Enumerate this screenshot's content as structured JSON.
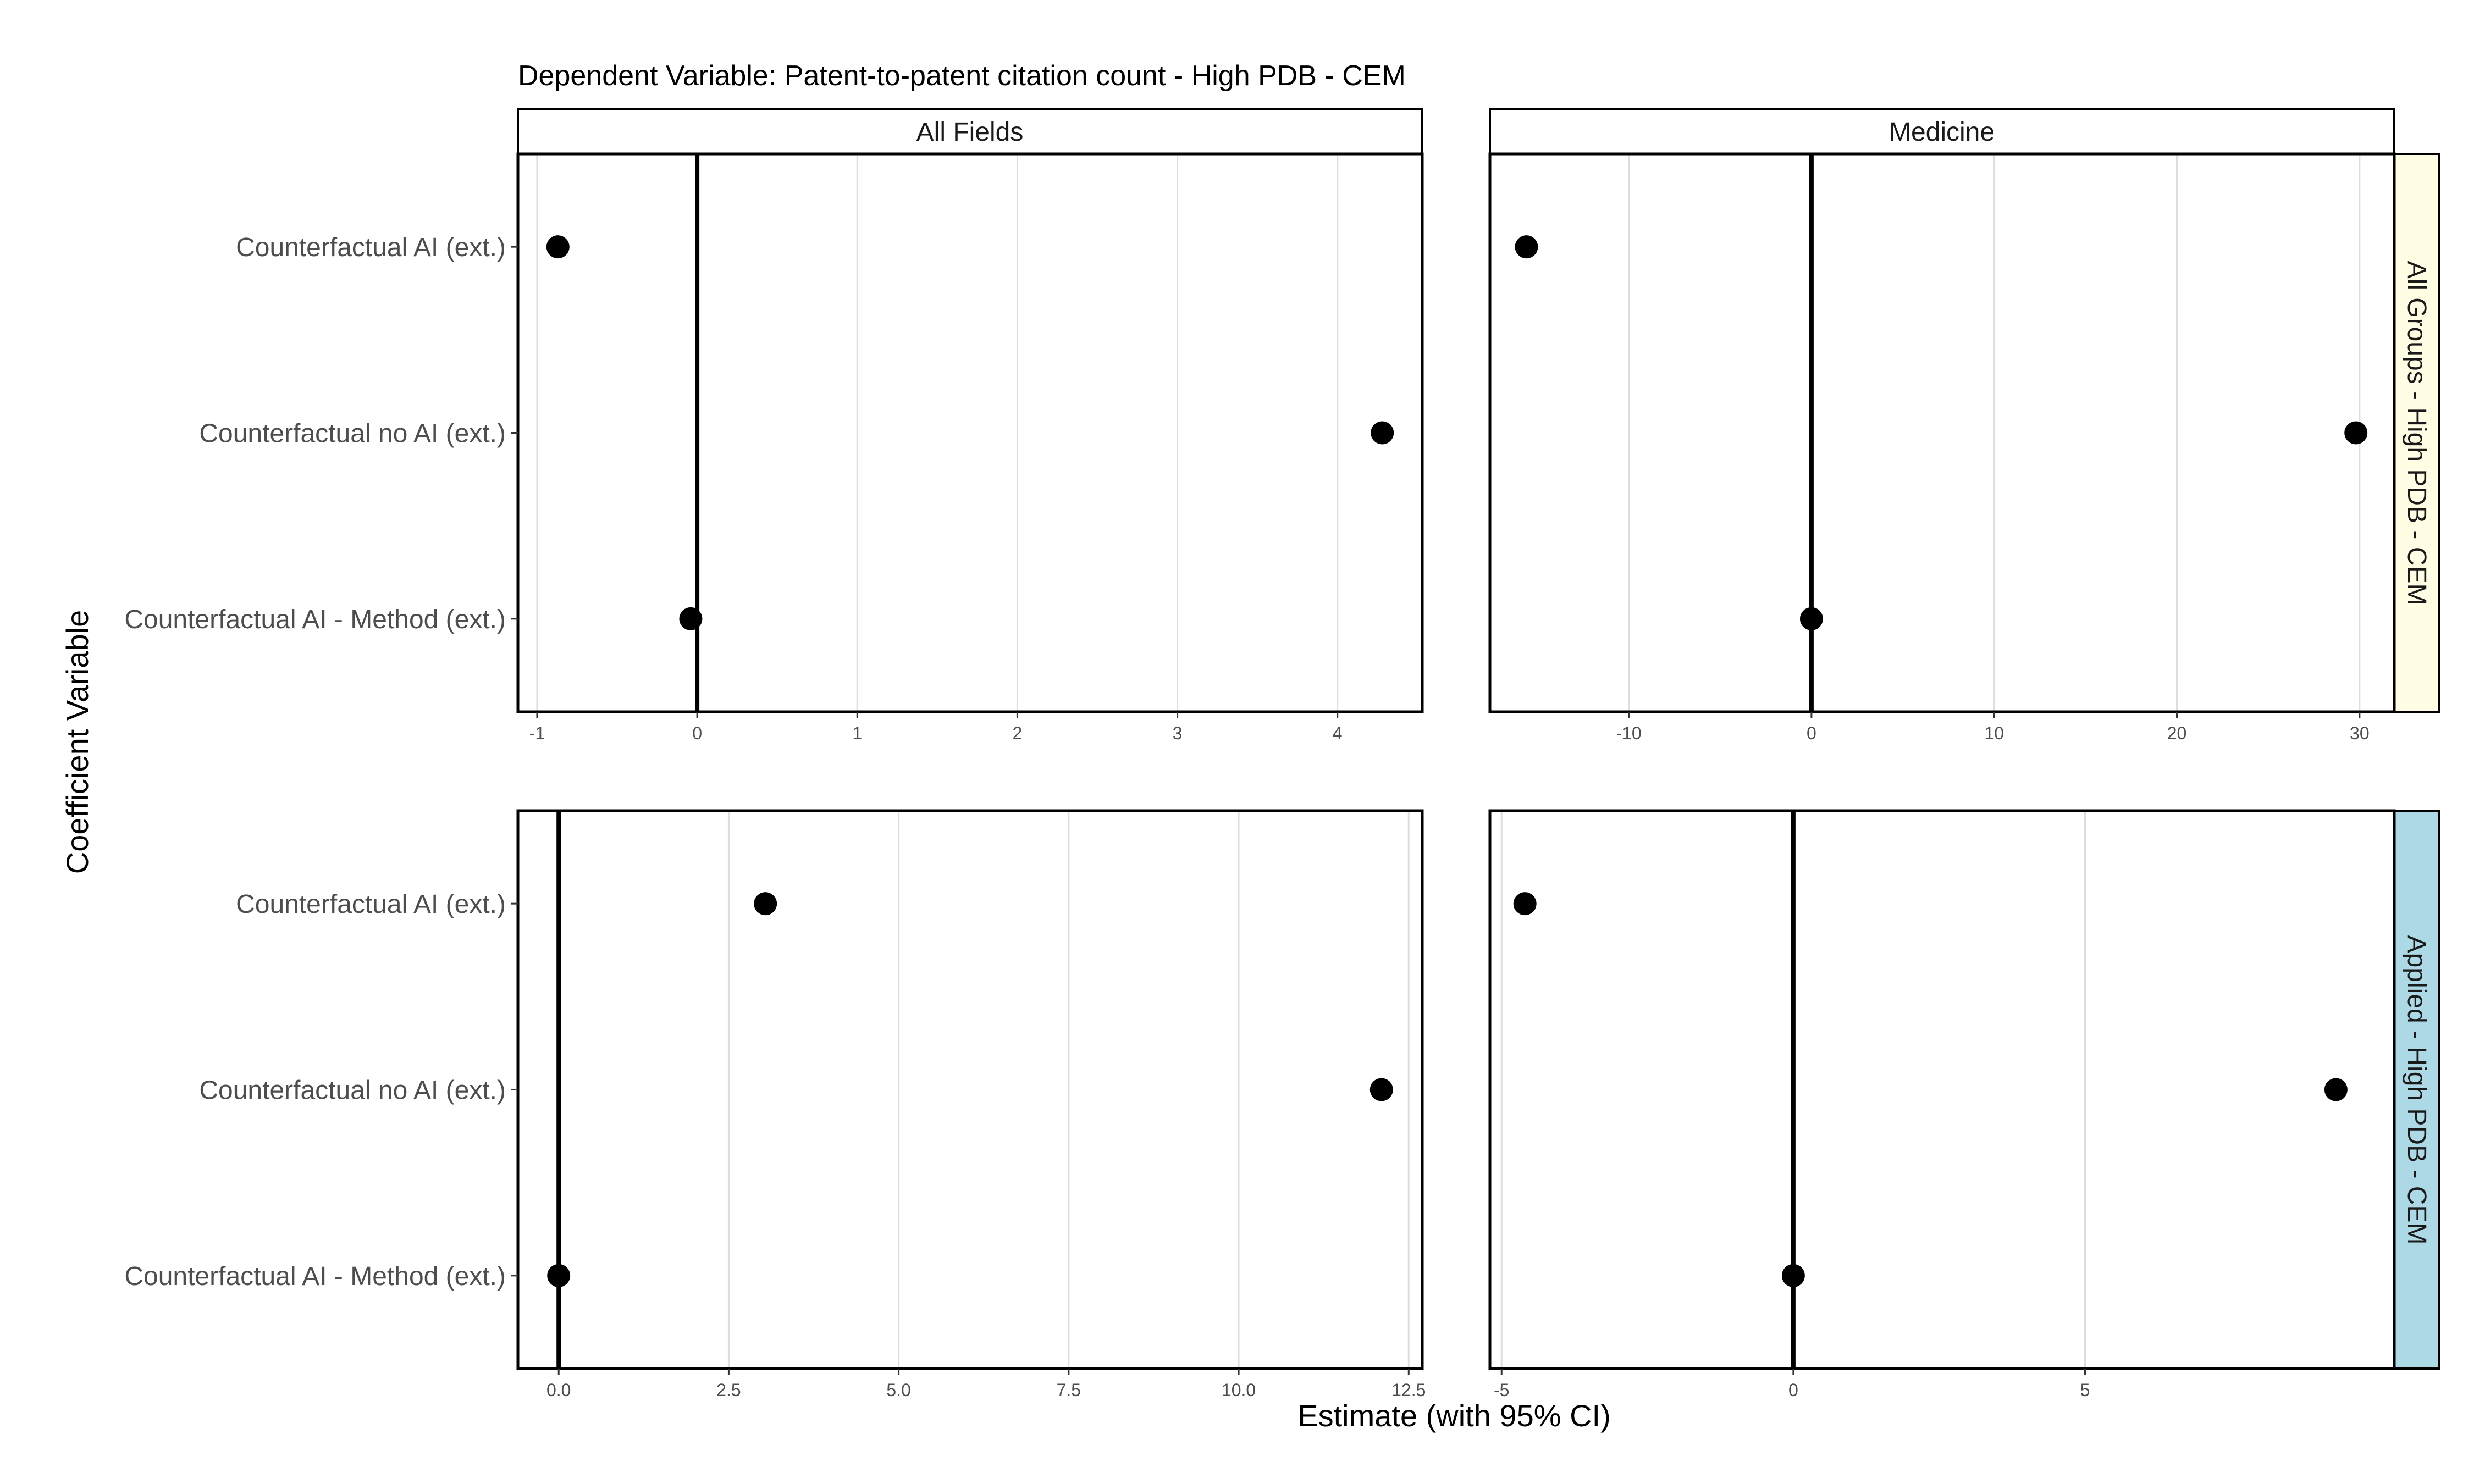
{
  "chart_data": {
    "type": "scatter",
    "title": "Dependent Variable: Patent-to-patent citation count  -  High PDB - CEM",
    "xlabel": "Estimate (with 95% CI)",
    "ylabel": "Coefficient Variable",
    "columns": [
      "All Fields",
      "Medicine"
    ],
    "rows": [
      {
        "label": "All Groups - High PDB - CEM",
        "color": "#fffde4"
      },
      {
        "label": "Applied - High PDB - CEM",
        "color": "#add8e6"
      }
    ],
    "categories": [
      "Counterfactual AI (ext.)",
      "Counterfactual no AI (ext.)",
      "Counterfactual AI - Method (ext.)"
    ],
    "grid": "vertical major lines",
    "reference_line": 0,
    "panels": [
      {
        "row": 0,
        "col": 0,
        "xlim": [
          -1.12,
          4.53
        ],
        "ticks": [
          -1,
          0,
          1,
          2,
          3,
          4
        ],
        "tick_labels": [
          "-1",
          "0",
          "1",
          "2",
          "3",
          "4"
        ],
        "values": [
          -0.87,
          4.28,
          -0.04
        ]
      },
      {
        "row": 0,
        "col": 1,
        "xlim": [
          -17.6,
          31.9
        ],
        "ticks": [
          -10,
          0,
          10,
          20,
          30
        ],
        "tick_labels": [
          "-10",
          "0",
          "10",
          "20",
          "30"
        ],
        "values": [
          -15.6,
          29.8,
          0.0
        ]
      },
      {
        "row": 1,
        "col": 0,
        "xlim": [
          -0.6,
          12.7
        ],
        "ticks": [
          0,
          2.5,
          5,
          7.5,
          10,
          12.5
        ],
        "tick_labels": [
          "0.0",
          "2.5",
          "5.0",
          "7.5",
          "10.0",
          "12.5"
        ],
        "values": [
          3.04,
          12.1,
          0.0
        ]
      },
      {
        "row": 1,
        "col": 1,
        "xlim": [
          -5.2,
          10.3
        ],
        "ticks": [
          -5,
          0,
          5
        ],
        "tick_labels": [
          "-5",
          "0",
          "5"
        ],
        "values": [
          -4.6,
          9.3,
          0.0
        ]
      }
    ]
  }
}
